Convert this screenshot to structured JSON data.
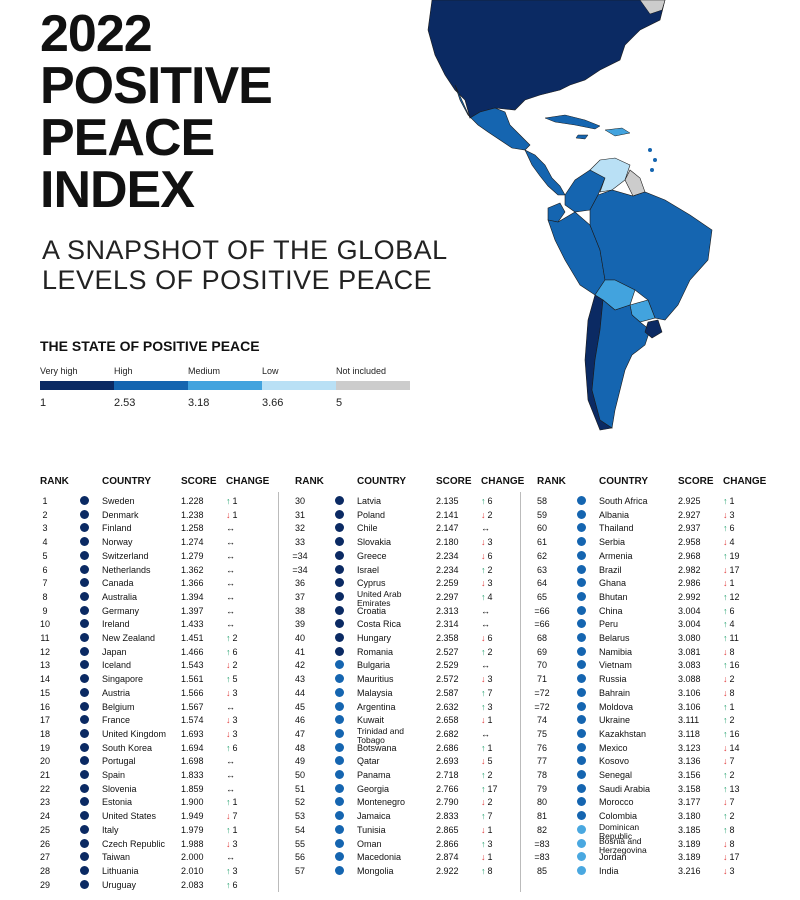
{
  "title_lines": [
    "2022",
    "POSITIVE",
    "PEACE",
    "INDEX"
  ],
  "subtitle_lines": [
    "A SNAPSHOT OF THE GLOBAL",
    "LEVELS OF POSITIVE PEACE"
  ],
  "legend": {
    "title": "THE STATE OF POSITIVE PEACE",
    "categories": [
      {
        "label": "Very high",
        "color": "#0b2a63"
      },
      {
        "label": "High",
        "color": "#1565b0"
      },
      {
        "label": "Medium",
        "color": "#42a3de"
      },
      {
        "label": "Low",
        "color": "#b9e0f5"
      },
      {
        "label": "Not included",
        "color": "#cccccc"
      }
    ],
    "values": [
      "1",
      "2.53",
      "3.18",
      "3.66",
      "5"
    ]
  },
  "table_headers": {
    "rank": "RANK",
    "country": "COUNTRY",
    "score": "SCORE",
    "change": "CHANGE"
  },
  "change_symbols": {
    "up": "↑",
    "down": "↓",
    "same": "↔"
  },
  "level_colors": {
    "very_high": "#0b2a63",
    "high": "#1565b0",
    "medium": "#4aa8e0"
  },
  "columns": [
    [
      {
        "rank": "1",
        "country": "Sweden",
        "score": "1.228",
        "change": "1",
        "dir": "up",
        "level": "very_high"
      },
      {
        "rank": "2",
        "country": "Denmark",
        "score": "1.238",
        "change": "1",
        "dir": "down",
        "level": "very_high"
      },
      {
        "rank": "3",
        "country": "Finland",
        "score": "1.258",
        "change": "",
        "dir": "same",
        "level": "very_high"
      },
      {
        "rank": "4",
        "country": "Norway",
        "score": "1.274",
        "change": "",
        "dir": "same",
        "level": "very_high"
      },
      {
        "rank": "5",
        "country": "Switzerland",
        "score": "1.279",
        "change": "",
        "dir": "same",
        "level": "very_high"
      },
      {
        "rank": "6",
        "country": "Netherlands",
        "score": "1.362",
        "change": "",
        "dir": "same",
        "level": "very_high"
      },
      {
        "rank": "7",
        "country": "Canada",
        "score": "1.366",
        "change": "",
        "dir": "same",
        "level": "very_high"
      },
      {
        "rank": "8",
        "country": "Australia",
        "score": "1.394",
        "change": "",
        "dir": "same",
        "level": "very_high"
      },
      {
        "rank": "9",
        "country": "Germany",
        "score": "1.397",
        "change": "",
        "dir": "same",
        "level": "very_high"
      },
      {
        "rank": "10",
        "country": "Ireland",
        "score": "1.433",
        "change": "",
        "dir": "same",
        "level": "very_high"
      },
      {
        "rank": "11",
        "country": "New Zealand",
        "score": "1.451",
        "change": "2",
        "dir": "up",
        "level": "very_high"
      },
      {
        "rank": "12",
        "country": "Japan",
        "score": "1.466",
        "change": "6",
        "dir": "up",
        "level": "very_high"
      },
      {
        "rank": "13",
        "country": "Iceland",
        "score": "1.543",
        "change": "2",
        "dir": "down",
        "level": "very_high"
      },
      {
        "rank": "14",
        "country": "Singapore",
        "score": "1.561",
        "change": "5",
        "dir": "up",
        "level": "very_high"
      },
      {
        "rank": "15",
        "country": "Austria",
        "score": "1.566",
        "change": "3",
        "dir": "down",
        "level": "very_high"
      },
      {
        "rank": "16",
        "country": "Belgium",
        "score": "1.567",
        "change": "",
        "dir": "same",
        "level": "very_high"
      },
      {
        "rank": "17",
        "country": "France",
        "score": "1.574",
        "change": "3",
        "dir": "down",
        "level": "very_high"
      },
      {
        "rank": "18",
        "country": "United Kingdom",
        "score": "1.693",
        "change": "3",
        "dir": "down",
        "level": "very_high"
      },
      {
        "rank": "19",
        "country": "South Korea",
        "score": "1.694",
        "change": "6",
        "dir": "up",
        "level": "very_high"
      },
      {
        "rank": "20",
        "country": "Portugal",
        "score": "1.698",
        "change": "",
        "dir": "same",
        "level": "very_high"
      },
      {
        "rank": "21",
        "country": "Spain",
        "score": "1.833",
        "change": "",
        "dir": "same",
        "level": "very_high"
      },
      {
        "rank": "22",
        "country": "Slovenia",
        "score": "1.859",
        "change": "",
        "dir": "same",
        "level": "very_high"
      },
      {
        "rank": "23",
        "country": "Estonia",
        "score": "1.900",
        "change": "1",
        "dir": "up",
        "level": "very_high"
      },
      {
        "rank": "24",
        "country": "United States",
        "score": "1.949",
        "change": "7",
        "dir": "down",
        "level": "very_high"
      },
      {
        "rank": "25",
        "country": "Italy",
        "score": "1.979",
        "change": "1",
        "dir": "up",
        "level": "very_high"
      },
      {
        "rank": "26",
        "country": "Czech Republic",
        "score": "1.988",
        "change": "3",
        "dir": "down",
        "level": "very_high"
      },
      {
        "rank": "27",
        "country": "Taiwan",
        "score": "2.000",
        "change": "",
        "dir": "same",
        "level": "very_high"
      },
      {
        "rank": "28",
        "country": "Lithuania",
        "score": "2.010",
        "change": "3",
        "dir": "up",
        "level": "very_high"
      },
      {
        "rank": "29",
        "country": "Uruguay",
        "score": "2.083",
        "change": "6",
        "dir": "up",
        "level": "very_high"
      }
    ],
    [
      {
        "rank": "30",
        "country": "Latvia",
        "score": "2.135",
        "change": "6",
        "dir": "up",
        "level": "very_high"
      },
      {
        "rank": "31",
        "country": "Poland",
        "score": "2.141",
        "change": "2",
        "dir": "down",
        "level": "very_high"
      },
      {
        "rank": "32",
        "country": "Chile",
        "score": "2.147",
        "change": "",
        "dir": "same",
        "level": "very_high"
      },
      {
        "rank": "33",
        "country": "Slovakia",
        "score": "2.180",
        "change": "3",
        "dir": "down",
        "level": "very_high"
      },
      {
        "rank": "=34",
        "country": "Greece",
        "score": "2.234",
        "change": "6",
        "dir": "down",
        "level": "very_high"
      },
      {
        "rank": "=34",
        "country": "Israel",
        "score": "2.234",
        "change": "2",
        "dir": "up",
        "level": "very_high"
      },
      {
        "rank": "36",
        "country": "Cyprus",
        "score": "2.259",
        "change": "3",
        "dir": "down",
        "level": "very_high"
      },
      {
        "rank": "37",
        "country": "United Arab Emirates",
        "score": "2.297",
        "change": "4",
        "dir": "up",
        "level": "very_high",
        "two_line": true
      },
      {
        "rank": "38",
        "country": "Croatia",
        "score": "2.313",
        "change": "",
        "dir": "same",
        "level": "very_high"
      },
      {
        "rank": "39",
        "country": "Costa Rica",
        "score": "2.314",
        "change": "",
        "dir": "same",
        "level": "very_high"
      },
      {
        "rank": "40",
        "country": "Hungary",
        "score": "2.358",
        "change": "6",
        "dir": "down",
        "level": "very_high"
      },
      {
        "rank": "41",
        "country": "Romania",
        "score": "2.527",
        "change": "2",
        "dir": "up",
        "level": "very_high"
      },
      {
        "rank": "42",
        "country": "Bulgaria",
        "score": "2.529",
        "change": "",
        "dir": "same",
        "level": "high"
      },
      {
        "rank": "43",
        "country": "Mauritius",
        "score": "2.572",
        "change": "3",
        "dir": "down",
        "level": "high"
      },
      {
        "rank": "44",
        "country": "Malaysia",
        "score": "2.587",
        "change": "7",
        "dir": "up",
        "level": "high"
      },
      {
        "rank": "45",
        "country": "Argentina",
        "score": "2.632",
        "change": "3",
        "dir": "up",
        "level": "high"
      },
      {
        "rank": "46",
        "country": "Kuwait",
        "score": "2.658",
        "change": "1",
        "dir": "down",
        "level": "high"
      },
      {
        "rank": "47",
        "country": "Trinidad and Tobago",
        "score": "2.682",
        "change": "",
        "dir": "same",
        "level": "high",
        "two_line": true
      },
      {
        "rank": "48",
        "country": "Botswana",
        "score": "2.686",
        "change": "1",
        "dir": "up",
        "level": "high"
      },
      {
        "rank": "49",
        "country": "Qatar",
        "score": "2.693",
        "change": "5",
        "dir": "down",
        "level": "high"
      },
      {
        "rank": "50",
        "country": "Panama",
        "score": "2.718",
        "change": "2",
        "dir": "up",
        "level": "high"
      },
      {
        "rank": "51",
        "country": "Georgia",
        "score": "2.766",
        "change": "17",
        "dir": "up",
        "level": "high"
      },
      {
        "rank": "52",
        "country": "Montenegro",
        "score": "2.790",
        "change": "2",
        "dir": "down",
        "level": "high"
      },
      {
        "rank": "53",
        "country": "Jamaica",
        "score": "2.833",
        "change": "7",
        "dir": "up",
        "level": "high"
      },
      {
        "rank": "54",
        "country": "Tunisia",
        "score": "2.865",
        "change": "1",
        "dir": "down",
        "level": "high"
      },
      {
        "rank": "55",
        "country": "Oman",
        "score": "2.866",
        "change": "3",
        "dir": "up",
        "level": "high"
      },
      {
        "rank": "56",
        "country": "Macedonia",
        "score": "2.874",
        "change": "1",
        "dir": "down",
        "level": "high"
      },
      {
        "rank": "57",
        "country": "Mongolia",
        "score": "2.922",
        "change": "8",
        "dir": "up",
        "level": "high"
      }
    ],
    [
      {
        "rank": "58",
        "country": "South Africa",
        "score": "2.925",
        "change": "1",
        "dir": "up",
        "level": "high"
      },
      {
        "rank": "59",
        "country": "Albania",
        "score": "2.927",
        "change": "3",
        "dir": "down",
        "level": "high"
      },
      {
        "rank": "60",
        "country": "Thailand",
        "score": "2.937",
        "change": "6",
        "dir": "up",
        "level": "high"
      },
      {
        "rank": "61",
        "country": "Serbia",
        "score": "2.958",
        "change": "4",
        "dir": "down",
        "level": "high"
      },
      {
        "rank": "62",
        "country": "Armenia",
        "score": "2.968",
        "change": "19",
        "dir": "up",
        "level": "high"
      },
      {
        "rank": "63",
        "country": "Brazil",
        "score": "2.982",
        "change": "17",
        "dir": "down",
        "level": "high"
      },
      {
        "rank": "64",
        "country": "Ghana",
        "score": "2.986",
        "change": "1",
        "dir": "down",
        "level": "high"
      },
      {
        "rank": "65",
        "country": "Bhutan",
        "score": "2.992",
        "change": "12",
        "dir": "up",
        "level": "high"
      },
      {
        "rank": "=66",
        "country": "China",
        "score": "3.004",
        "change": "6",
        "dir": "up",
        "level": "high"
      },
      {
        "rank": "=66",
        "country": "Peru",
        "score": "3.004",
        "change": "4",
        "dir": "up",
        "level": "high"
      },
      {
        "rank": "68",
        "country": "Belarus",
        "score": "3.080",
        "change": "11",
        "dir": "up",
        "level": "high"
      },
      {
        "rank": "69",
        "country": "Namibia",
        "score": "3.081",
        "change": "8",
        "dir": "down",
        "level": "high"
      },
      {
        "rank": "70",
        "country": "Vietnam",
        "score": "3.083",
        "change": "16",
        "dir": "up",
        "level": "high"
      },
      {
        "rank": "71",
        "country": "Russia",
        "score": "3.088",
        "change": "2",
        "dir": "down",
        "level": "high"
      },
      {
        "rank": "=72",
        "country": "Bahrain",
        "score": "3.106",
        "change": "8",
        "dir": "down",
        "level": "high"
      },
      {
        "rank": "=72",
        "country": "Moldova",
        "score": "3.106",
        "change": "1",
        "dir": "up",
        "level": "high"
      },
      {
        "rank": "74",
        "country": "Ukraine",
        "score": "3.111",
        "change": "2",
        "dir": "up",
        "level": "high"
      },
      {
        "rank": "75",
        "country": "Kazakhstan",
        "score": "3.118",
        "change": "16",
        "dir": "up",
        "level": "high"
      },
      {
        "rank": "76",
        "country": "Mexico",
        "score": "3.123",
        "change": "14",
        "dir": "down",
        "level": "high"
      },
      {
        "rank": "77",
        "country": "Kosovo",
        "score": "3.136",
        "change": "7",
        "dir": "down",
        "level": "high"
      },
      {
        "rank": "78",
        "country": "Senegal",
        "score": "3.156",
        "change": "2",
        "dir": "up",
        "level": "high"
      },
      {
        "rank": "79",
        "country": "Saudi Arabia",
        "score": "3.158",
        "change": "13",
        "dir": "up",
        "level": "high"
      },
      {
        "rank": "80",
        "country": "Morocco",
        "score": "3.177",
        "change": "7",
        "dir": "down",
        "level": "high"
      },
      {
        "rank": "81",
        "country": "Colombia",
        "score": "3.180",
        "change": "2",
        "dir": "up",
        "level": "high"
      },
      {
        "rank": "82",
        "country": "Dominican Republic",
        "score": "3.185",
        "change": "8",
        "dir": "up",
        "level": "medium",
        "two_line": true
      },
      {
        "rank": "=83",
        "country": "Bosnia and Herzegovina",
        "score": "3.189",
        "change": "8",
        "dir": "down",
        "level": "medium",
        "two_line": true
      },
      {
        "rank": "=83",
        "country": "Jordan",
        "score": "3.189",
        "change": "17",
        "dir": "down",
        "level": "medium"
      },
      {
        "rank": "85",
        "country": "India",
        "score": "3.216",
        "change": "3",
        "dir": "down",
        "level": "medium"
      }
    ]
  ]
}
